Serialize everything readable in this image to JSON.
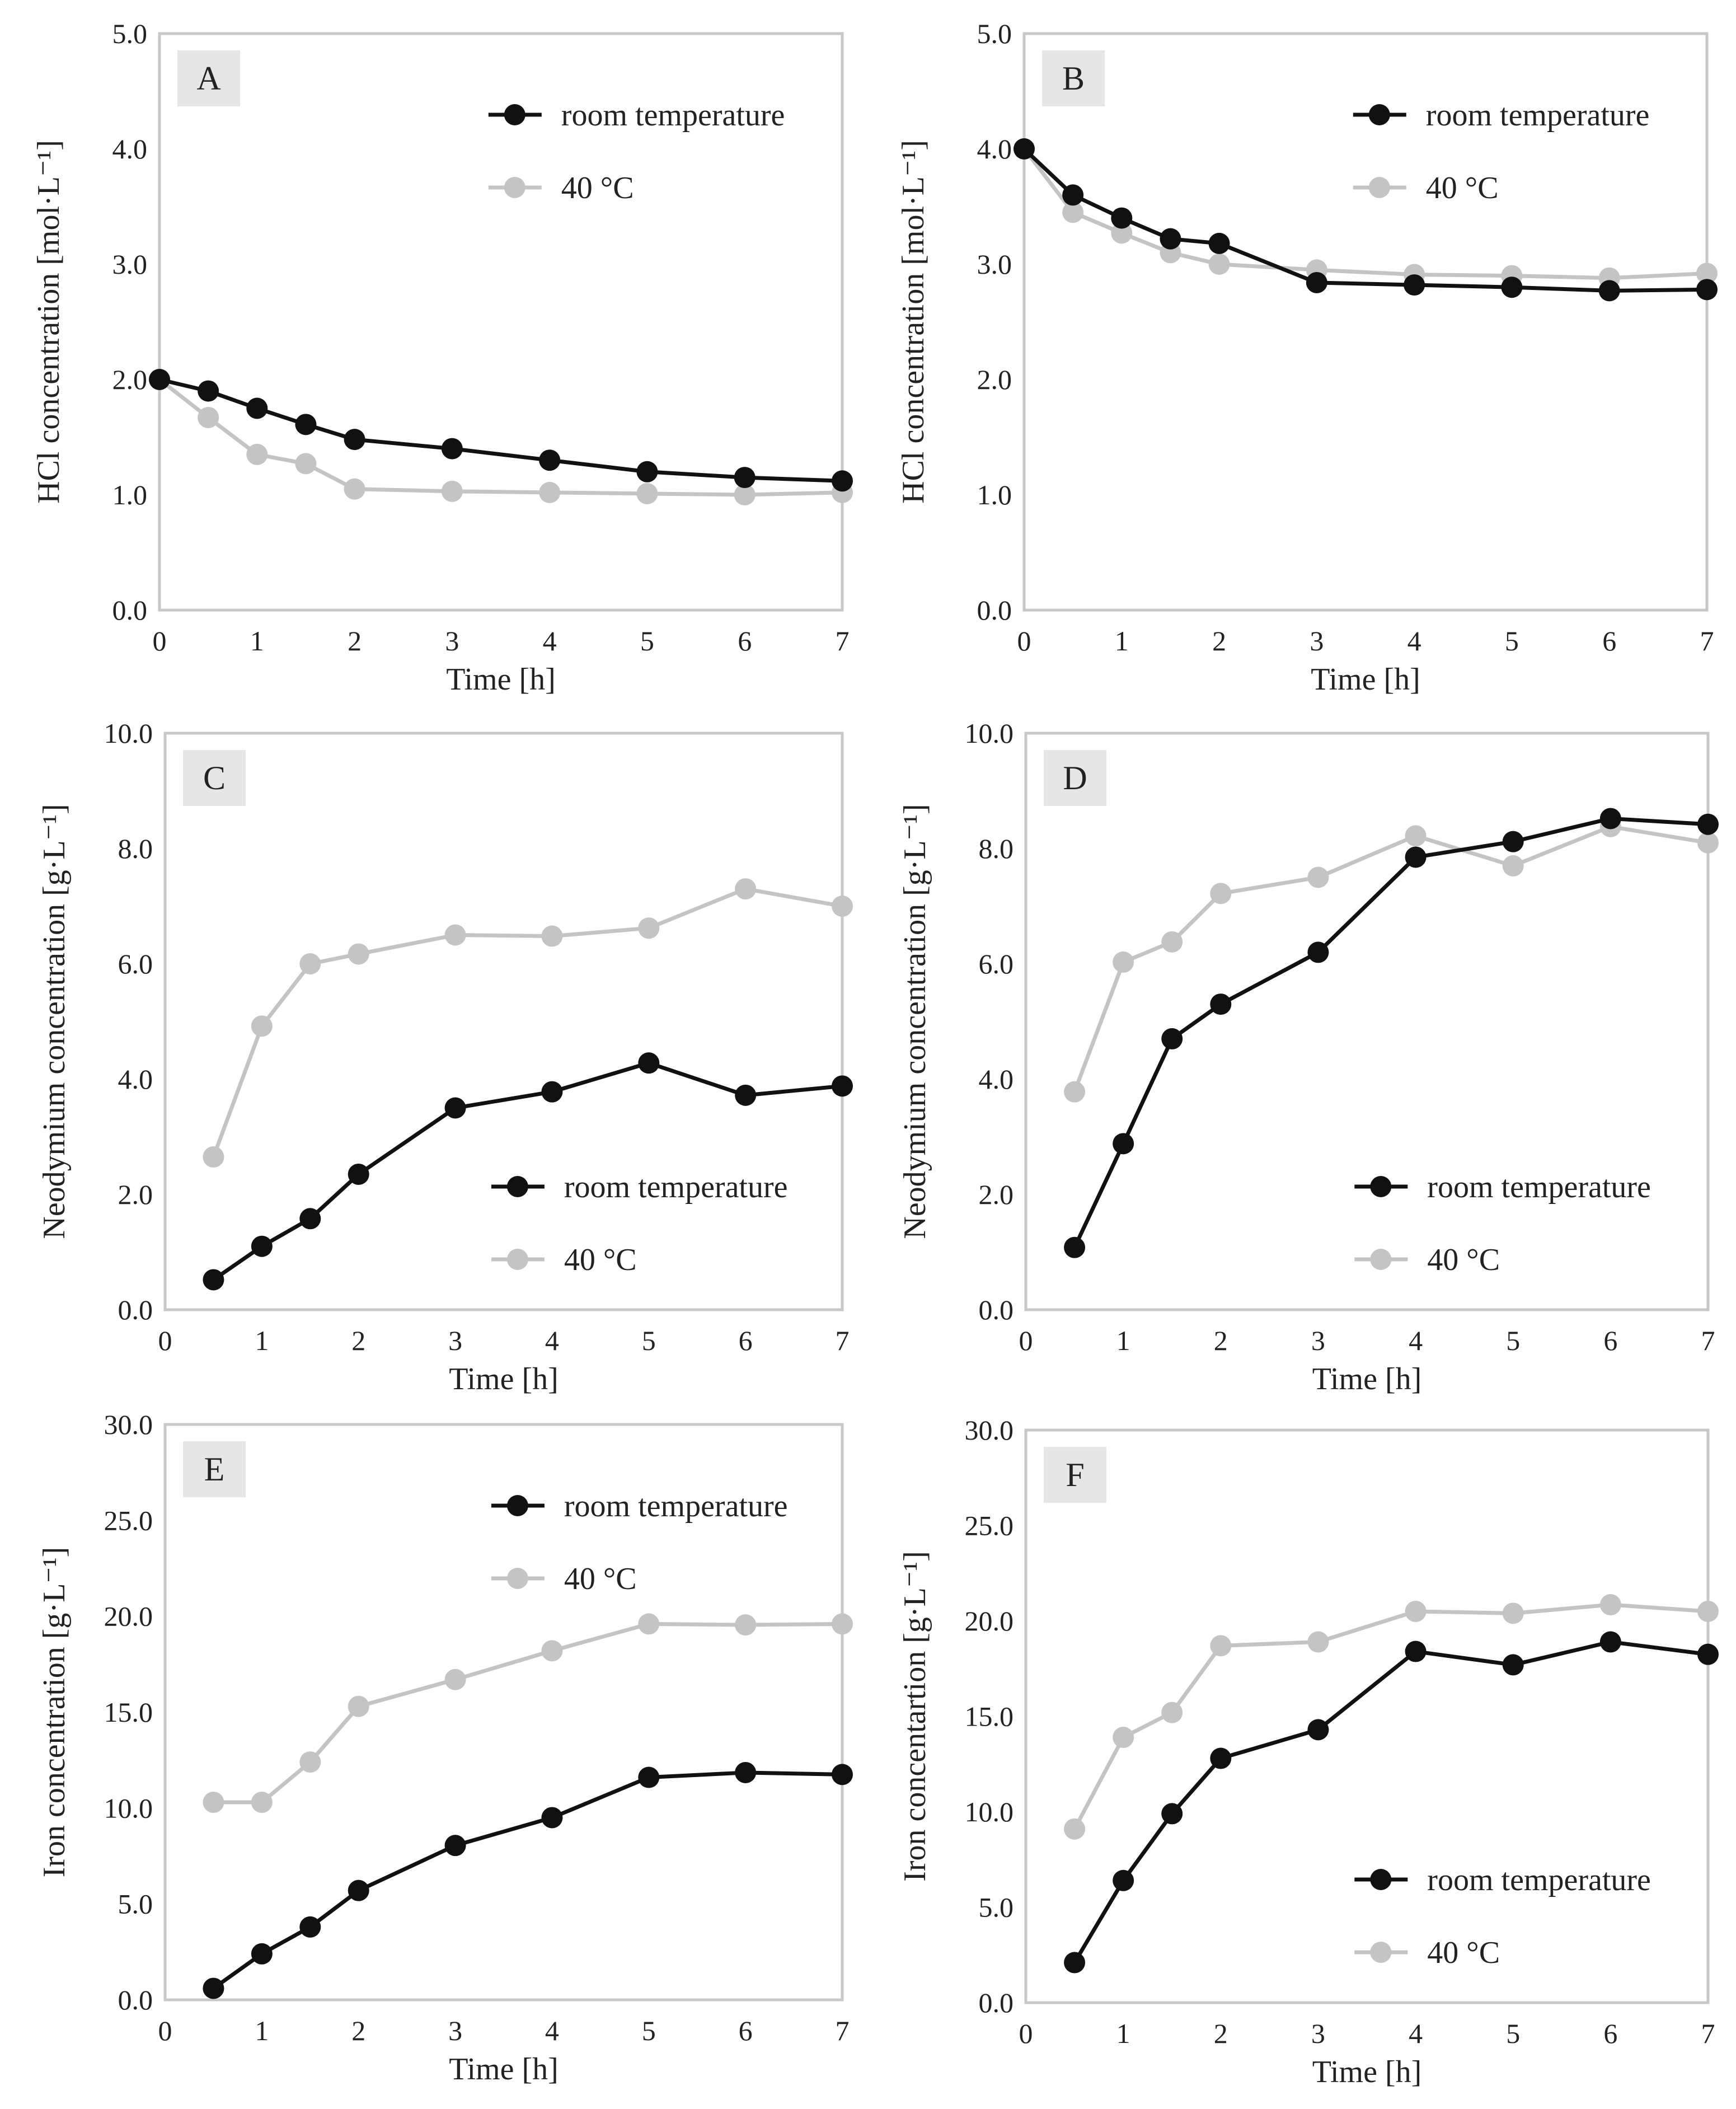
{
  "figure": {
    "series_styles": {
      "room temperature": {
        "color": "#111111"
      },
      "40 °C": {
        "color": "#c4c4c4"
      }
    }
  },
  "chart_data": [
    {
      "panel": "A",
      "type": "line",
      "xlabel": "Time [h]",
      "ylabel": "HCl concentration [mol·L⁻¹]",
      "xlim": [
        0,
        7
      ],
      "ylim": [
        0,
        5
      ],
      "xticks": [
        "0",
        "1",
        "2",
        "3",
        "4",
        "5",
        "6",
        "7"
      ],
      "yticks": [
        "0.0",
        "1.0",
        "2.0",
        "3.0",
        "4.0",
        "5.0"
      ],
      "legend_position": "top-right",
      "series": [
        {
          "name": "room temperature",
          "x": [
            0,
            0.5,
            1,
            1.5,
            2,
            3,
            4,
            5,
            6,
            7
          ],
          "values": [
            2.0,
            1.9,
            1.75,
            1.61,
            1.48,
            1.4,
            1.3,
            1.2,
            1.15,
            1.12
          ]
        },
        {
          "name": "40 °C",
          "x": [
            0,
            0.5,
            1,
            1.5,
            2,
            3,
            4,
            5,
            6,
            7
          ],
          "values": [
            2.0,
            1.67,
            1.35,
            1.27,
            1.05,
            1.03,
            1.02,
            1.01,
            1.0,
            1.02
          ]
        }
      ]
    },
    {
      "panel": "B",
      "type": "line",
      "xlabel": "Time [h]",
      "ylabel": "HCl concentration [mol·L⁻¹]",
      "xlim": [
        0,
        7
      ],
      "ylim": [
        0,
        5
      ],
      "xticks": [
        "0",
        "1",
        "2",
        "3",
        "4",
        "5",
        "6",
        "7"
      ],
      "yticks": [
        "0.0",
        "1.0",
        "2.0",
        "3.0",
        "4.0",
        "5.0"
      ],
      "legend_position": "top-right",
      "series": [
        {
          "name": "room temperature",
          "x": [
            0,
            0.5,
            1,
            1.5,
            2,
            3,
            4,
            5,
            6,
            7
          ],
          "values": [
            4.0,
            3.6,
            3.4,
            3.22,
            3.18,
            2.84,
            2.82,
            2.8,
            2.77,
            2.78
          ]
        },
        {
          "name": "40 °C",
          "x": [
            0,
            0.5,
            1,
            1.5,
            2,
            3,
            4,
            5,
            6,
            7
          ],
          "values": [
            4.0,
            3.45,
            3.27,
            3.1,
            3.0,
            2.95,
            2.91,
            2.9,
            2.88,
            2.92
          ]
        }
      ]
    },
    {
      "panel": "C",
      "type": "line",
      "xlabel": "Time [h]",
      "ylabel": "Neodymium concentration [g·L⁻¹]",
      "xlim": [
        0,
        7
      ],
      "ylim": [
        0,
        10
      ],
      "xticks": [
        "0",
        "1",
        "2",
        "3",
        "4",
        "5",
        "6",
        "7"
      ],
      "yticks": [
        "0.0",
        "2.0",
        "4.0",
        "6.0",
        "8.0",
        "10.0"
      ],
      "legend_position": "bottom-right",
      "series": [
        {
          "name": "room temperature",
          "x": [
            0.5,
            1,
            1.5,
            2,
            3,
            4,
            5,
            6,
            7
          ],
          "values": [
            0.52,
            1.1,
            1.58,
            2.35,
            3.5,
            3.78,
            4.28,
            3.72,
            3.88
          ]
        },
        {
          "name": "40 °C",
          "x": [
            0.5,
            1,
            1.5,
            2,
            3,
            4,
            5,
            6,
            7
          ],
          "values": [
            2.65,
            4.92,
            6.0,
            6.17,
            6.5,
            6.48,
            6.62,
            7.3,
            7.0
          ]
        }
      ]
    },
    {
      "panel": "D",
      "type": "line",
      "xlabel": "Time [h]",
      "ylabel": "Neodymium concentration [g·L⁻¹]",
      "xlim": [
        0,
        7
      ],
      "ylim": [
        0,
        10
      ],
      "xticks": [
        "0",
        "1",
        "2",
        "3",
        "4",
        "5",
        "6",
        "7"
      ],
      "yticks": [
        "0.0",
        "2.0",
        "4.0",
        "6.0",
        "8.0",
        "10.0"
      ],
      "legend_position": "bottom-right",
      "series": [
        {
          "name": "room temperature",
          "x": [
            0.5,
            1,
            1.5,
            2,
            3,
            4,
            5,
            6,
            7
          ],
          "values": [
            1.08,
            2.88,
            4.7,
            5.3,
            6.2,
            7.85,
            8.12,
            8.52,
            8.42
          ]
        },
        {
          "name": "40 °C",
          "x": [
            0.5,
            1,
            1.5,
            2,
            3,
            4,
            5,
            6,
            7
          ],
          "values": [
            3.78,
            6.03,
            6.38,
            7.22,
            7.5,
            8.22,
            7.7,
            8.38,
            8.1
          ]
        }
      ]
    },
    {
      "panel": "E",
      "type": "line",
      "xlabel": "Time [h]",
      "ylabel": "Iron concentration [g·L⁻¹]",
      "xlim": [
        0,
        7
      ],
      "ylim": [
        0,
        30
      ],
      "xticks": [
        "0",
        "1",
        "2",
        "3",
        "4",
        "5",
        "6",
        "7"
      ],
      "yticks": [
        "0.0",
        "5.0",
        "10.0",
        "15.0",
        "20.0",
        "25.0",
        "30.0"
      ],
      "legend_position": "top-right",
      "series": [
        {
          "name": "room temperature",
          "x": [
            0.5,
            1,
            1.5,
            2,
            3,
            4,
            5,
            6,
            7
          ],
          "values": [
            0.6,
            2.4,
            3.8,
            5.7,
            8.05,
            9.5,
            11.6,
            11.85,
            11.75
          ]
        },
        {
          "name": "40 °C",
          "x": [
            0.5,
            1,
            1.5,
            2,
            3,
            4,
            5,
            6,
            7
          ],
          "values": [
            10.3,
            10.3,
            12.4,
            15.3,
            16.7,
            18.2,
            19.6,
            19.55,
            19.6
          ]
        }
      ]
    },
    {
      "panel": "F",
      "type": "line",
      "xlabel": "Time [h]",
      "ylabel": "Iron concentartion [g·L⁻¹]",
      "xlim": [
        0,
        7
      ],
      "ylim": [
        0,
        30
      ],
      "xticks": [
        "0",
        "1",
        "2",
        "3",
        "4",
        "5",
        "6",
        "7"
      ],
      "yticks": [
        "0.0",
        "5.0",
        "10.0",
        "15.0",
        "20.0",
        "25.0",
        "30.0"
      ],
      "legend_position": "bottom-right",
      "series": [
        {
          "name": "room temperature",
          "x": [
            0.5,
            1,
            1.5,
            2,
            3,
            4,
            5,
            6,
            7
          ],
          "values": [
            2.1,
            6.4,
            9.9,
            12.8,
            14.3,
            18.4,
            17.7,
            18.9,
            18.25
          ]
        },
        {
          "name": "40 °C",
          "x": [
            0.5,
            1,
            1.5,
            2,
            3,
            4,
            5,
            6,
            7
          ],
          "values": [
            9.1,
            13.9,
            15.2,
            18.7,
            18.9,
            20.5,
            20.4,
            20.85,
            20.5
          ]
        }
      ]
    }
  ]
}
